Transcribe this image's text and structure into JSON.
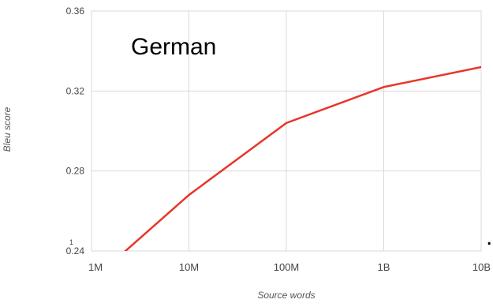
{
  "chart_data": {
    "type": "line",
    "xlabel": "Source words",
    "ylabel": "Bleu score",
    "x_categories": [
      "1M",
      "10M",
      "100M",
      "1B",
      "10B"
    ],
    "x_scale": "log10",
    "x_axis_extra_tick": "1",
    "ylim": [
      0.24,
      0.36
    ],
    "y_ticks": [
      "0.24",
      "0.28",
      "0.32",
      "0.36"
    ],
    "grid": true,
    "series": [
      {
        "color": "#e8352a",
        "points": [
          {
            "x": "1M",
            "y": 0.225
          },
          {
            "x": "10M",
            "y": 0.268
          },
          {
            "x": "100M",
            "y": 0.304
          },
          {
            "x": "1B",
            "y": 0.322
          },
          {
            "x": "10B",
            "y": 0.332
          }
        ]
      }
    ],
    "annotation": "German",
    "trailing_mark": "."
  }
}
